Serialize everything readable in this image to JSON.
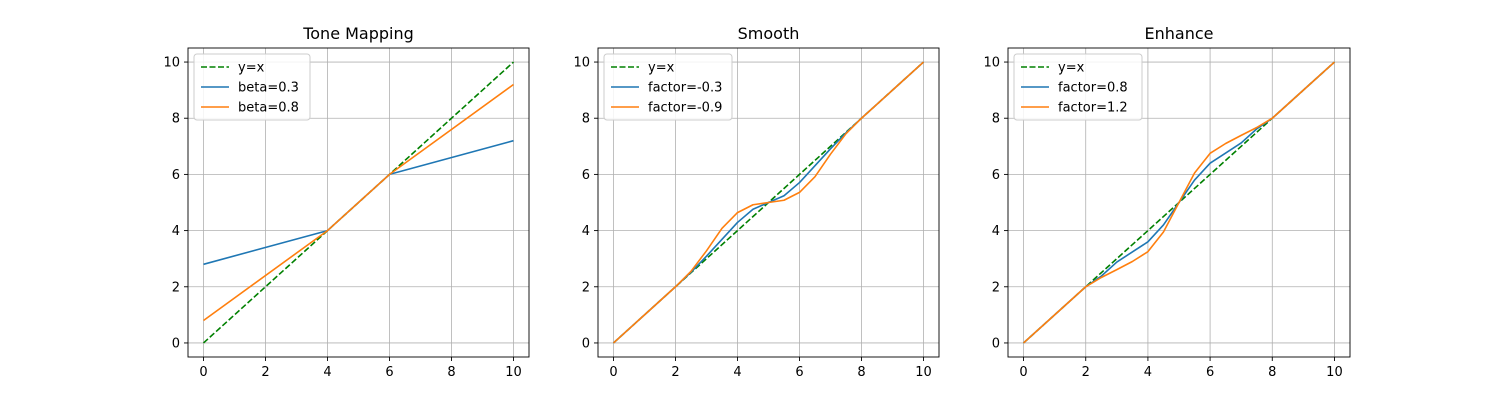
{
  "chart_data": [
    {
      "type": "line",
      "title": "Tone Mapping",
      "xlabel": "",
      "ylabel": "",
      "xlim": [
        -0.5,
        10.5
      ],
      "ylim": [
        -0.5,
        10.5
      ],
      "xticks": [
        0,
        2,
        4,
        6,
        8,
        10
      ],
      "yticks": [
        0,
        2,
        4,
        6,
        8,
        10
      ],
      "grid": true,
      "legend": "upper left",
      "series": [
        {
          "name": "y=x",
          "color": "#008000",
          "dashed": true,
          "x": [
            0,
            10
          ],
          "y": [
            0,
            10
          ]
        },
        {
          "name": "beta=0.3",
          "color": "#1f77b4",
          "dashed": false,
          "x": [
            0,
            4,
            6,
            10
          ],
          "y": [
            2.8,
            4,
            6,
            7.2
          ]
        },
        {
          "name": "beta=0.8",
          "color": "#ff7f0e",
          "dashed": false,
          "x": [
            0,
            4,
            6,
            10
          ],
          "y": [
            0.8,
            4,
            6,
            9.2
          ]
        }
      ]
    },
    {
      "type": "line",
      "title": "Smooth",
      "xlabel": "",
      "ylabel": "",
      "xlim": [
        -0.5,
        10.5
      ],
      "ylim": [
        -0.5,
        10.5
      ],
      "xticks": [
        0,
        2,
        4,
        6,
        8,
        10
      ],
      "yticks": [
        0,
        2,
        4,
        6,
        8,
        10
      ],
      "grid": true,
      "legend": "upper left",
      "series": [
        {
          "name": "y=x",
          "color": "#008000",
          "dashed": true,
          "x": [
            0,
            10
          ],
          "y": [
            0,
            10
          ]
        },
        {
          "name": "factor=-0.3",
          "color": "#1f77b4",
          "dashed": false,
          "x": [
            0,
            1,
            2,
            2.5,
            3,
            3.5,
            4,
            4.5,
            5,
            5.5,
            6,
            6.5,
            7,
            7.5,
            8,
            9,
            10
          ],
          "y": [
            0,
            1,
            2,
            2.52,
            3.09,
            3.69,
            4.29,
            4.76,
            5,
            5.24,
            5.71,
            6.31,
            6.91,
            7.48,
            8,
            9,
            10
          ]
        },
        {
          "name": "factor=-0.9",
          "color": "#ff7f0e",
          "dashed": false,
          "x": [
            0,
            1,
            2,
            2.5,
            3,
            3.5,
            4,
            4.5,
            5,
            5.5,
            6,
            6.5,
            7,
            7.5,
            8,
            9,
            10
          ],
          "y": [
            0,
            1,
            2,
            2.55,
            3.28,
            4.08,
            4.64,
            4.92,
            5,
            5.08,
            5.36,
            5.92,
            6.72,
            7.45,
            8,
            9,
            10
          ]
        }
      ]
    },
    {
      "type": "line",
      "title": "Enhance",
      "xlabel": "",
      "ylabel": "",
      "xlim": [
        -0.5,
        10.5
      ],
      "ylim": [
        -0.5,
        10.5
      ],
      "xticks": [
        0,
        2,
        4,
        6,
        8,
        10
      ],
      "yticks": [
        0,
        2,
        4,
        6,
        8,
        10
      ],
      "grid": true,
      "legend": "upper left",
      "series": [
        {
          "name": "y=x",
          "color": "#008000",
          "dashed": true,
          "x": [
            0,
            10
          ],
          "y": [
            0,
            10
          ]
        },
        {
          "name": "factor=0.8",
          "color": "#1f77b4",
          "dashed": false,
          "x": [
            0,
            1,
            2,
            2.5,
            3,
            3.5,
            4,
            4.5,
            5,
            5.5,
            6,
            6.5,
            7,
            7.5,
            8,
            9,
            10
          ],
          "y": [
            0,
            1,
            2,
            2.38,
            2.88,
            3.24,
            3.6,
            4.2,
            5,
            5.8,
            6.4,
            6.76,
            7.12,
            7.62,
            8,
            9,
            10
          ]
        },
        {
          "name": "factor=1.2",
          "color": "#ff7f0e",
          "dashed": false,
          "x": [
            0,
            1,
            2,
            2.5,
            3,
            3.5,
            4,
            4.5,
            5,
            5.5,
            6,
            6.5,
            7,
            7.5,
            8,
            9,
            10
          ],
          "y": [
            0,
            1,
            2,
            2.33,
            2.61,
            2.9,
            3.25,
            3.95,
            5,
            6.05,
            6.75,
            7.1,
            7.39,
            7.67,
            8,
            9,
            10
          ]
        }
      ]
    }
  ]
}
